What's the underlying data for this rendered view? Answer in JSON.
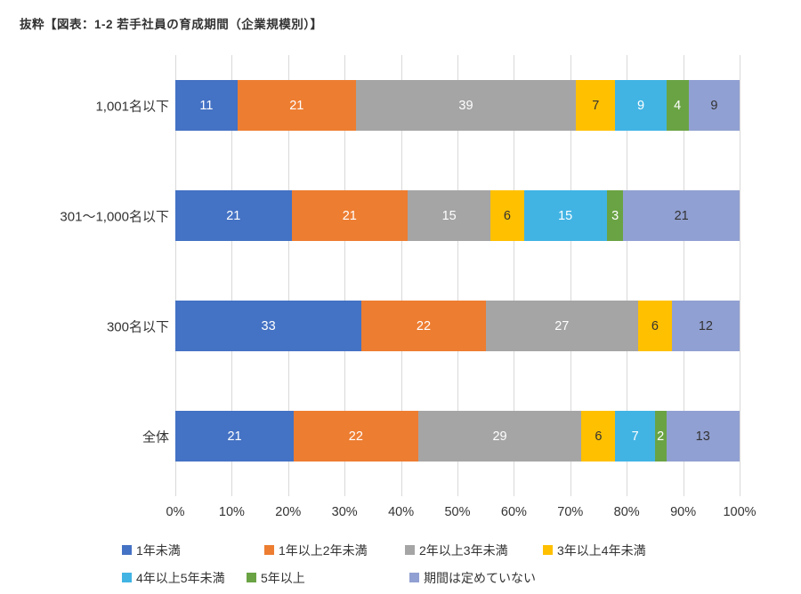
{
  "title": "抜粋【図表：1-2 若手社員の育成期間（企業規模別）】",
  "chart_data": {
    "type": "bar",
    "orientation": "horizontal",
    "stacked": true,
    "unit": "%",
    "title": "抜粋【図表：1-2 若手社員の育成期間（企業規模別）】",
    "categories": [
      "1,001名以下",
      "301〜1,000名以下",
      "300名以下",
      "全体"
    ],
    "series": [
      {
        "name": "1年未満",
        "color": "#4472C4",
        "label_color": "#FFFFFF",
        "values": [
          11,
          21,
          33,
          21
        ]
      },
      {
        "name": "1年以上2年未満",
        "color": "#ED7D31",
        "label_color": "#FFFFFF",
        "values": [
          21,
          21,
          22,
          22
        ]
      },
      {
        "name": "2年以上3年未満",
        "color": "#A5A5A5",
        "label_color": "#FFFFFF",
        "values": [
          39,
          15,
          27,
          29
        ]
      },
      {
        "name": "3年以上4年未満",
        "color": "#FFC000",
        "label_color": "#333333",
        "values": [
          7,
          6,
          6,
          6
        ]
      },
      {
        "name": "4年以上5年未満",
        "color": "#41B4E4",
        "label_color": "#FFFFFF",
        "values": [
          9,
          15,
          0,
          7
        ]
      },
      {
        "name": "5年以上",
        "color": "#6AA344",
        "label_color": "#FFFFFF",
        "values": [
          4,
          3,
          0,
          2
        ]
      },
      {
        "name": "期間は定めていない",
        "color": "#91A0D2",
        "label_color": "#333333",
        "values": [
          9,
          21,
          12,
          13
        ]
      }
    ],
    "x_axis": {
      "min": 0,
      "max": 100,
      "ticks": [
        "0%",
        "10%",
        "20%",
        "30%",
        "40%",
        "50%",
        "60%",
        "70%",
        "80%",
        "90%",
        "100%"
      ]
    },
    "grid": true,
    "legend_position": "bottom",
    "legend_rows": [
      [
        0,
        1,
        2,
        3
      ],
      [
        4,
        5,
        6
      ]
    ]
  }
}
